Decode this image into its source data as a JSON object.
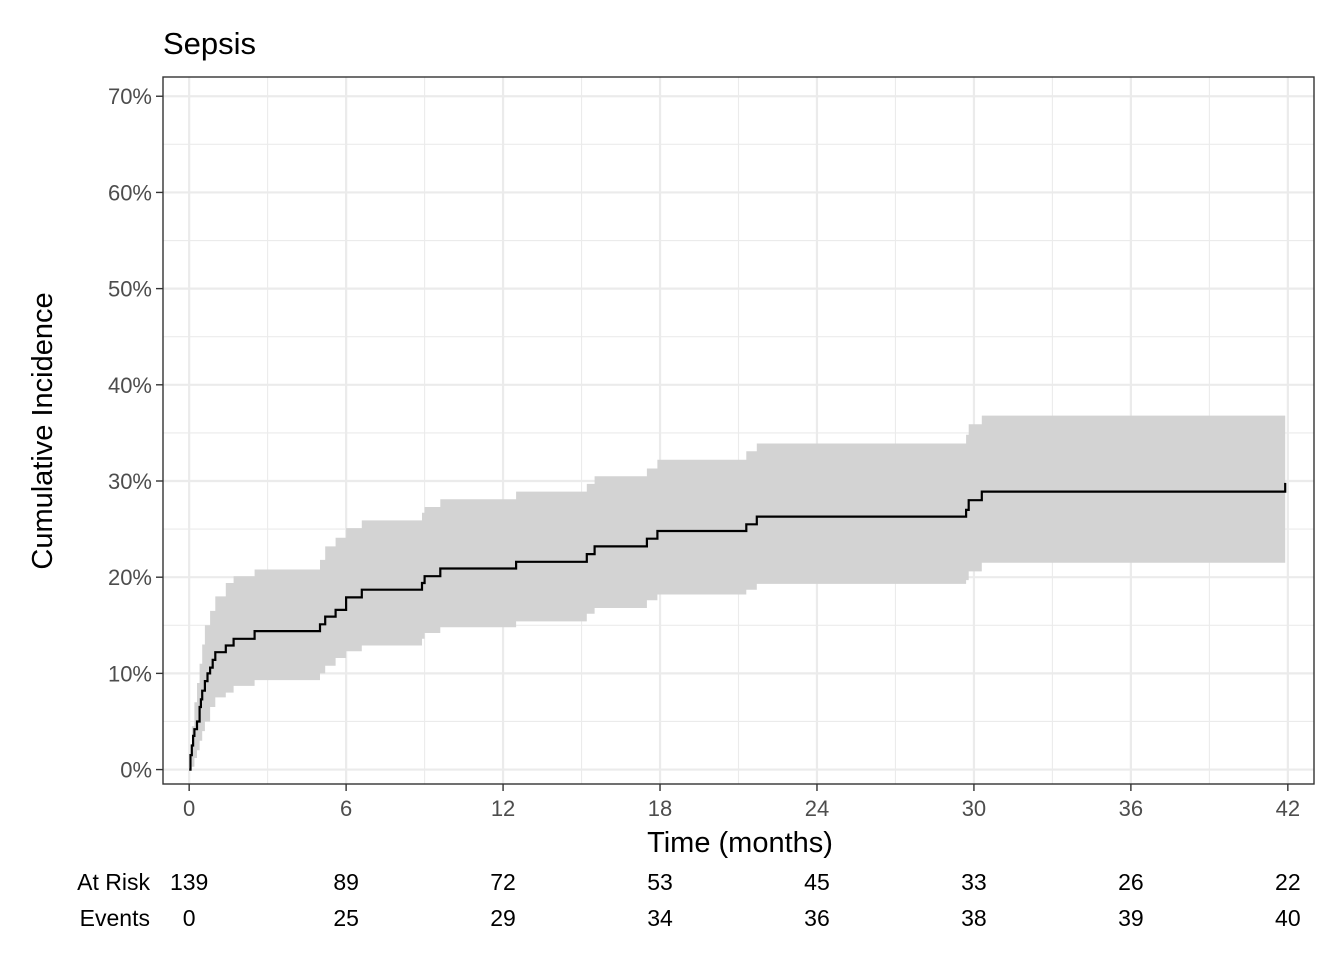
{
  "chart_data": {
    "type": "line",
    "title": "Sepsis",
    "xlabel": "Time (months)",
    "ylabel": "Cumulative Incidence",
    "xlim": [
      -1,
      43
    ],
    "ylim": [
      -1.5,
      72
    ],
    "x_ticks": [
      0,
      6,
      12,
      18,
      24,
      30,
      36,
      42
    ],
    "x_tick_labels": [
      "0",
      "6",
      "12",
      "18",
      "24",
      "30",
      "36",
      "42"
    ],
    "y_ticks": [
      0,
      10,
      20,
      30,
      40,
      50,
      60,
      70
    ],
    "y_tick_labels": [
      "0%",
      "10%",
      "20%",
      "30%",
      "40%",
      "50%",
      "60%",
      "70%"
    ],
    "grid": true,
    "colors": {
      "line": "#000000",
      "band": "#d3d3d3",
      "grid": "#ebebeb",
      "border": "#333333"
    },
    "series": [
      {
        "type": "step",
        "x": [
          0,
          0.05,
          0.1,
          0.15,
          0.2,
          0.3,
          0.4,
          0.45,
          0.5,
          0.6,
          0.7,
          0.8,
          0.9,
          1.0,
          1.4,
          1.7,
          2.5,
          4.9,
          5.0,
          5.2,
          5.6,
          6.0,
          6.6,
          8.9,
          9.0,
          9.6,
          12.5,
          15.2,
          15.5,
          17.5,
          17.9,
          21.3,
          21.7,
          29.7,
          29.8,
          30.3,
          41.9
        ],
        "y": [
          0,
          1.5,
          2.5,
          3.5,
          4.2,
          5.0,
          6.5,
          7.3,
          8.2,
          9.2,
          10.0,
          10.6,
          11.4,
          12.2,
          12.9,
          13.6,
          14.4,
          14.4,
          15.1,
          15.9,
          16.6,
          17.9,
          18.7,
          19.4,
          20.1,
          20.9,
          21.6,
          22.4,
          23.2,
          24.0,
          24.8,
          25.5,
          26.3,
          27.0,
          28.0,
          28.9,
          29.8
        ]
      },
      {
        "type": "band",
        "x": [
          0,
          0.1,
          0.2,
          0.3,
          0.4,
          0.5,
          0.6,
          0.8,
          1.0,
          1.4,
          1.7,
          2.5,
          4.9,
          5.0,
          5.2,
          5.6,
          6.0,
          6.6,
          8.9,
          9.0,
          9.6,
          12.5,
          15.2,
          15.5,
          17.5,
          17.9,
          21.3,
          21.7,
          29.7,
          29.8,
          30.3,
          41.9
        ],
        "lower": [
          0,
          0.3,
          1.2,
          2.0,
          3.0,
          4.0,
          5.0,
          6.5,
          7.5,
          8.0,
          8.7,
          9.3,
          9.3,
          10.0,
          10.8,
          11.6,
          12.3,
          12.9,
          13.6,
          14.2,
          14.8,
          15.4,
          16.2,
          16.8,
          17.6,
          18.2,
          18.7,
          19.3,
          19.7,
          20.6,
          21.5,
          21.5
        ],
        "upper": [
          0,
          4.5,
          7.0,
          9.0,
          11.0,
          13.0,
          15.0,
          16.5,
          18.0,
          19.4,
          20.1,
          20.8,
          20.8,
          21.8,
          23.2,
          24.1,
          25.1,
          25.9,
          26.7,
          27.3,
          28.1,
          28.9,
          29.7,
          30.5,
          31.3,
          32.2,
          33.1,
          33.9,
          34.8,
          35.9,
          36.8,
          36.8
        ]
      }
    ],
    "risk_table": {
      "rows": [
        {
          "label": "At Risk",
          "values": [
            "139",
            "89",
            "72",
            "53",
            "45",
            "33",
            "26",
            "22"
          ]
        },
        {
          "label": "Events",
          "values": [
            "0",
            "25",
            "29",
            "34",
            "36",
            "38",
            "39",
            "40"
          ]
        }
      ],
      "times": [
        0,
        6,
        12,
        18,
        24,
        30,
        36,
        42
      ]
    }
  }
}
